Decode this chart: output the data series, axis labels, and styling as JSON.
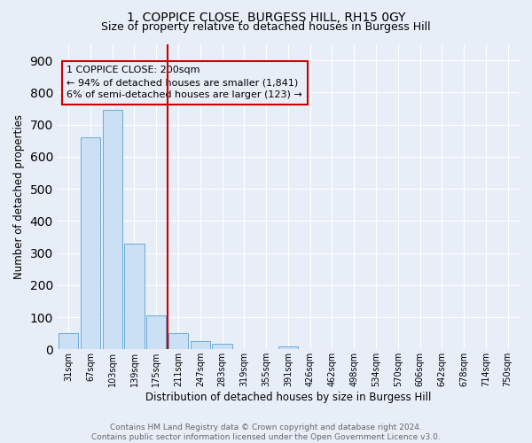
{
  "title1": "1, COPPICE CLOSE, BURGESS HILL, RH15 0GY",
  "title2": "Size of property relative to detached houses in Burgess Hill",
  "xlabel": "Distribution of detached houses by size in Burgess Hill",
  "ylabel": "Number of detached properties",
  "bar_labels": [
    "31sqm",
    "67sqm",
    "103sqm",
    "139sqm",
    "175sqm",
    "211sqm",
    "247sqm",
    "283sqm",
    "319sqm",
    "355sqm",
    "391sqm",
    "426sqm",
    "462sqm",
    "498sqm",
    "534sqm",
    "570sqm",
    "606sqm",
    "642sqm",
    "678sqm",
    "714sqm",
    "750sqm"
  ],
  "bar_values": [
    50,
    660,
    745,
    330,
    105,
    50,
    25,
    17,
    0,
    0,
    10,
    0,
    0,
    0,
    0,
    0,
    0,
    0,
    0,
    0,
    0
  ],
  "bar_color": "#cce0f5",
  "bar_edge_color": "#6aaad4",
  "vline_color": "#cc0000",
  "annotation_text": "1 COPPICE CLOSE: 200sqm\n← 94% of detached houses are smaller (1,841)\n6% of semi-detached houses are larger (123) →",
  "annotation_box_color": "#cc0000",
  "ylim": [
    0,
    950
  ],
  "yticks": [
    0,
    100,
    200,
    300,
    400,
    500,
    600,
    700,
    800,
    900
  ],
  "footer": "Contains HM Land Registry data © Crown copyright and database right 2024.\nContains public sector information licensed under the Open Government Licence v3.0.",
  "bg_color": "#e8eef8",
  "grid_color": "#ffffff",
  "title_fontsize": 10,
  "subtitle_fontsize": 9,
  "annotation_fontsize": 8,
  "footer_fontsize": 6.5,
  "ylabel_fontsize": 8.5,
  "xlabel_fontsize": 8.5
}
